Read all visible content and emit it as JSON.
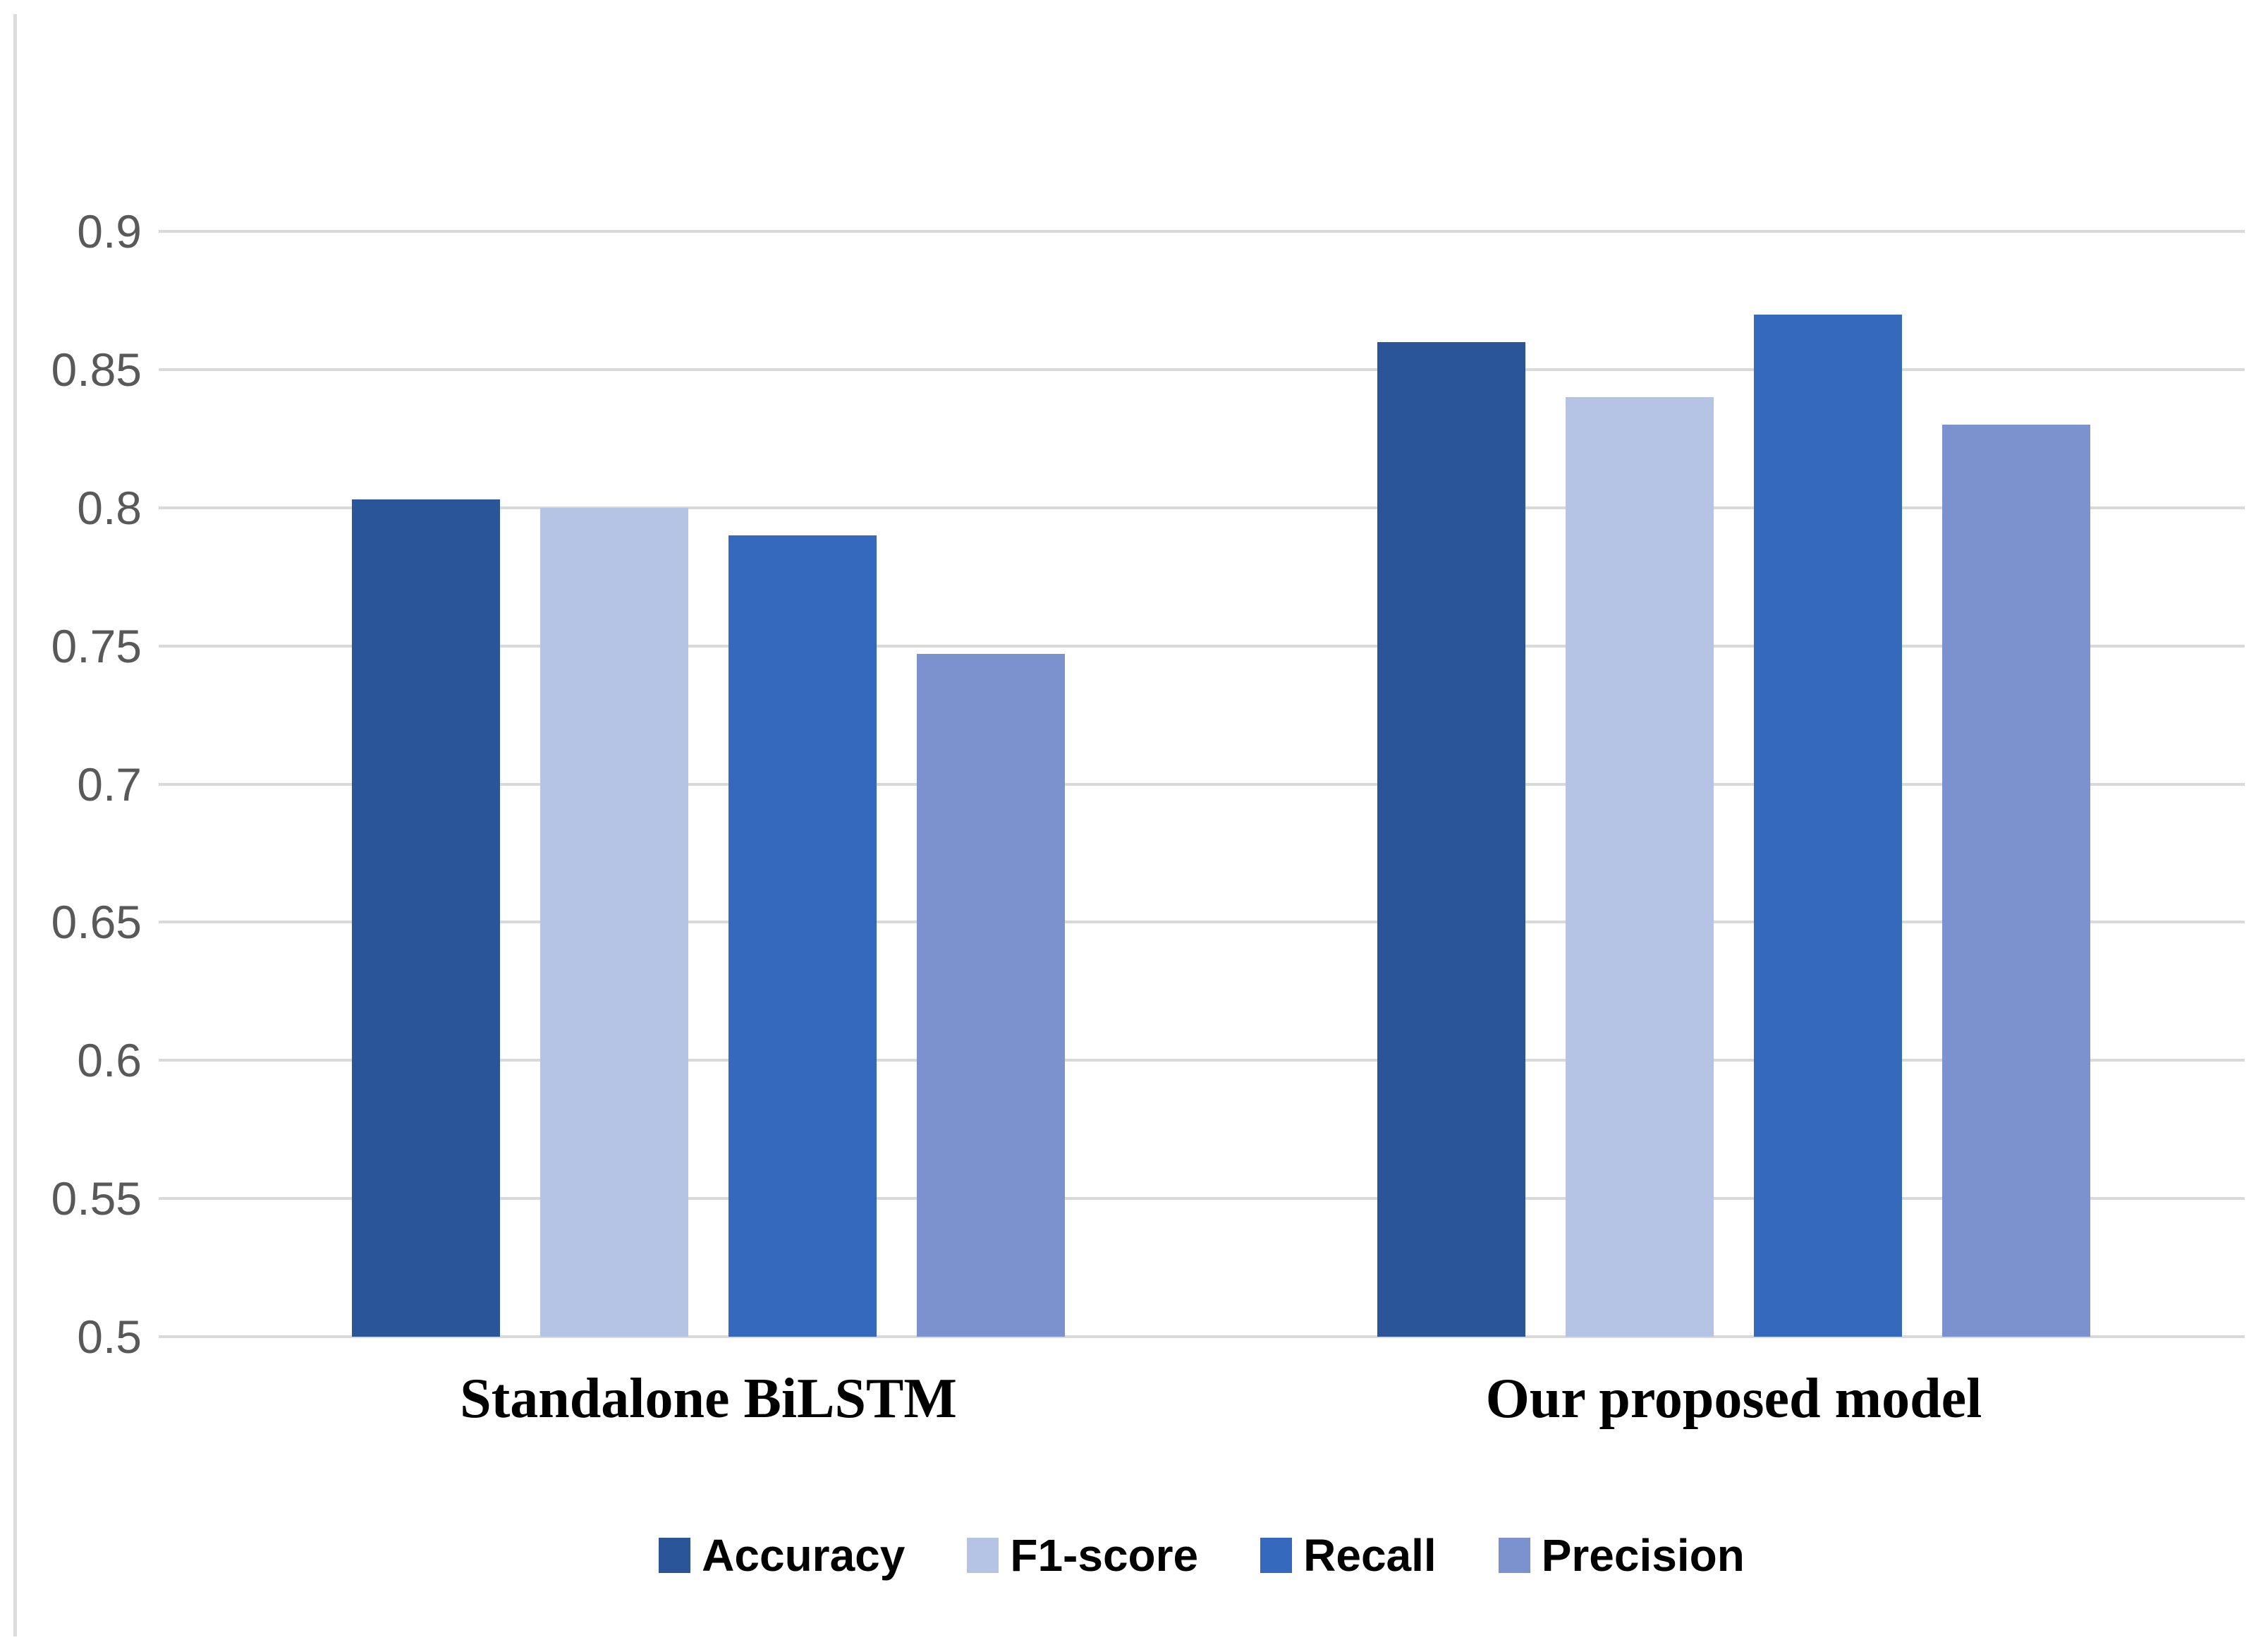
{
  "chart_data": {
    "type": "bar",
    "title": "",
    "xlabel": "",
    "ylabel": "",
    "categories": [
      "Standalone BiLSTM",
      "Our proposed model"
    ],
    "series": [
      {
        "name": "Accuracy",
        "color": "#2A5699",
        "values": [
          0.803,
          0.86
        ]
      },
      {
        "name": "F1-score",
        "color": "#B5C4E5",
        "values": [
          0.8,
          0.84
        ]
      },
      {
        "name": "Recall",
        "color": "#3569BE",
        "values": [
          0.79,
          0.87
        ]
      },
      {
        "name": "Precision",
        "color": "#7B92CF",
        "values": [
          0.747,
          0.83
        ]
      }
    ],
    "ylim": [
      0.5,
      0.9
    ],
    "yticks": [
      {
        "value": 0.9,
        "label": "0.9"
      },
      {
        "value": 0.85,
        "label": "0.85"
      },
      {
        "value": 0.8,
        "label": "0.8"
      },
      {
        "value": 0.75,
        "label": "0.75"
      },
      {
        "value": 0.7,
        "label": "0.7"
      },
      {
        "value": 0.65,
        "label": "0.65"
      },
      {
        "value": 0.6,
        "label": "0.6"
      },
      {
        "value": 0.55,
        "label": "0.55"
      },
      {
        "value": 0.5,
        "label": "0.5"
      }
    ],
    "grid": true,
    "gridline_color": "#D9D9D9",
    "tick_label_color": "#595959",
    "legend_position": "bottom"
  }
}
